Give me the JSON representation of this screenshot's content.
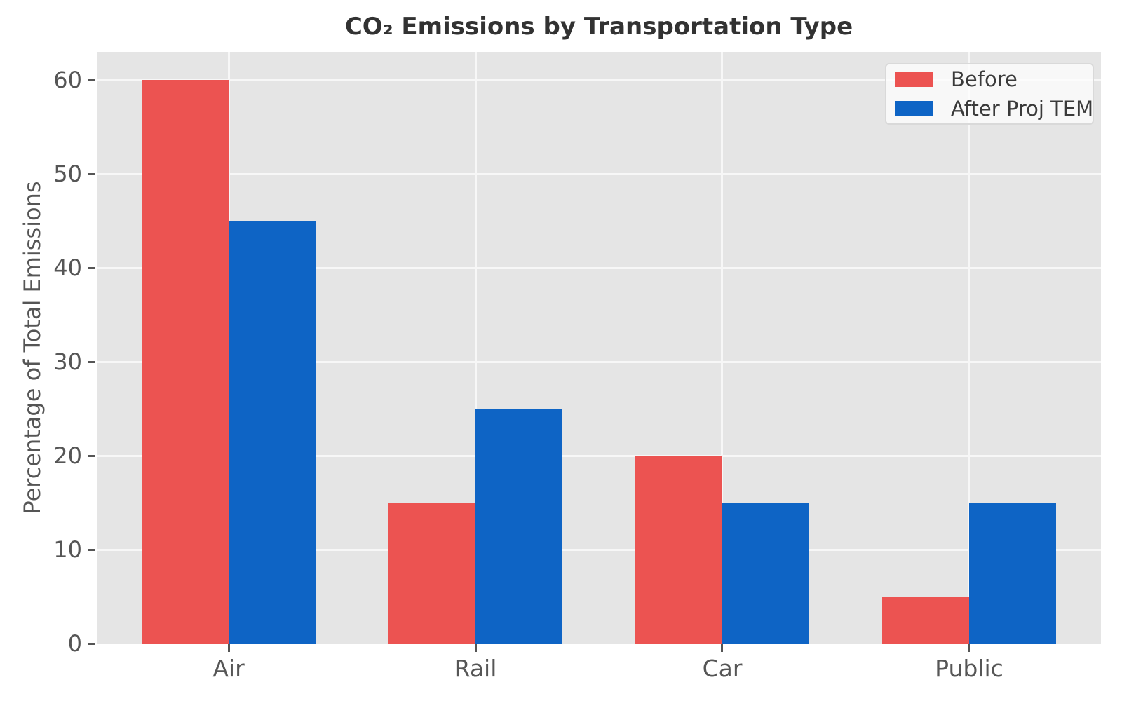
{
  "chart_data": {
    "type": "bar",
    "title": "CO₂ Emissions by Transportation Type",
    "ylabel": "Percentage of Total Emissions",
    "xlabel": "",
    "categories": [
      "Air",
      "Rail",
      "Car",
      "Public"
    ],
    "series": [
      {
        "name": "Before",
        "color": "#EC5351",
        "values": [
          60,
          15,
          20,
          5
        ]
      },
      {
        "name": "After Proj TEM",
        "color": "#0E64C5",
        "values": [
          45,
          25,
          15,
          15
        ]
      }
    ],
    "ylim": [
      0,
      63
    ],
    "yticks": [
      0,
      10,
      20,
      30,
      40,
      50,
      60
    ],
    "grid": true,
    "legend_position": "upper right",
    "colors": {
      "plot_bg": "#E5E5E5",
      "grid": "#F7F7F7",
      "tick_text": "#565656",
      "title_text": "#323232",
      "legend_text": "#3A3A3A"
    }
  }
}
